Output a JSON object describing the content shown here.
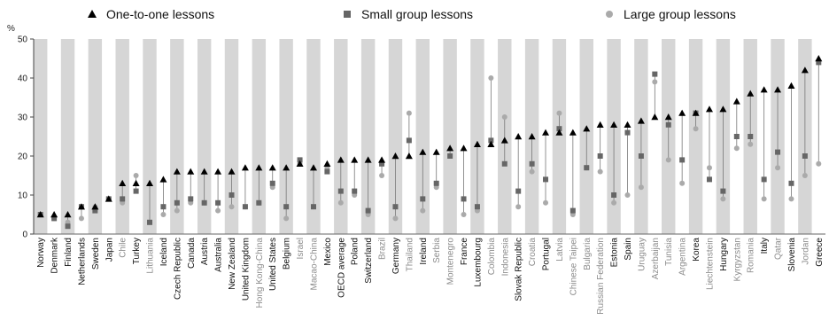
{
  "chart_data": {
    "type": "scatter",
    "ylabel": "%",
    "ylim": [
      0,
      50
    ],
    "yticks": [
      0,
      10,
      20,
      30,
      40,
      50
    ],
    "legend": {
      "placement": "top",
      "items": [
        {
          "label": "One-to-one lessons",
          "marker": "triangle",
          "color": "#000000"
        },
        {
          "label": "Small group lessons",
          "marker": "square",
          "color": "#666666"
        },
        {
          "label": "Large group lessons",
          "marker": "circle",
          "color": "#aaaaaa"
        }
      ]
    },
    "series_keys": [
      "one_to_one",
      "small_group",
      "large_group"
    ],
    "countries": [
      {
        "name": "Norway",
        "one_to_one": 5,
        "small_group": 5,
        "large_group": 5,
        "grey": false
      },
      {
        "name": "Denmark",
        "one_to_one": 5,
        "small_group": 4,
        "large_group": 4,
        "grey": false
      },
      {
        "name": "Finland",
        "one_to_one": 5,
        "small_group": 2,
        "large_group": 3,
        "grey": false
      },
      {
        "name": "Netherlands",
        "one_to_one": 7,
        "small_group": 7,
        "large_group": 4,
        "grey": false
      },
      {
        "name": "Sweden",
        "one_to_one": 7,
        "small_group": 6,
        "large_group": 7,
        "grey": false
      },
      {
        "name": "Japan",
        "one_to_one": 9,
        "small_group": 9,
        "large_group": 9,
        "grey": false
      },
      {
        "name": "Chile",
        "one_to_one": 13,
        "small_group": 9,
        "large_group": 8,
        "grey": true
      },
      {
        "name": "Turkey",
        "one_to_one": 13,
        "small_group": 11,
        "large_group": 15,
        "grey": false
      },
      {
        "name": "Lithuania",
        "one_to_one": 13,
        "small_group": 3,
        "large_group": 3,
        "grey": true
      },
      {
        "name": "Iceland",
        "one_to_one": 14,
        "small_group": 7,
        "large_group": 5,
        "grey": false
      },
      {
        "name": "Czech Republic",
        "one_to_one": 16,
        "small_group": 8,
        "large_group": 6,
        "grey": false
      },
      {
        "name": "Canada",
        "one_to_one": 16,
        "small_group": 9,
        "large_group": 8,
        "grey": false
      },
      {
        "name": "Austria",
        "one_to_one": 16,
        "small_group": 8,
        "large_group": 8,
        "grey": false
      },
      {
        "name": "Australia",
        "one_to_one": 16,
        "small_group": 8,
        "large_group": 6,
        "grey": false
      },
      {
        "name": "New Zealand",
        "one_to_one": 16,
        "small_group": 10,
        "large_group": 7,
        "grey": false
      },
      {
        "name": "United Kingdom",
        "one_to_one": 17,
        "small_group": 7,
        "large_group": 7,
        "grey": false
      },
      {
        "name": "Hong Kong-China",
        "one_to_one": 17,
        "small_group": 8,
        "large_group": 8,
        "grey": true
      },
      {
        "name": "United States",
        "one_to_one": 17,
        "small_group": 13,
        "large_group": 12,
        "grey": false
      },
      {
        "name": "Belgium",
        "one_to_one": 17,
        "small_group": 7,
        "large_group": 4,
        "grey": false
      },
      {
        "name": "Israel",
        "one_to_one": 18,
        "small_group": 19,
        "large_group": 18,
        "grey": true
      },
      {
        "name": "Macao-China",
        "one_to_one": 17,
        "small_group": 7,
        "large_group": 7,
        "grey": true
      },
      {
        "name": "Mexico",
        "one_to_one": 18,
        "small_group": 16,
        "large_group": 17,
        "grey": false
      },
      {
        "name": "OECD average",
        "one_to_one": 19,
        "small_group": 11,
        "large_group": 8,
        "grey": false
      },
      {
        "name": "Poland",
        "one_to_one": 19,
        "small_group": 11,
        "large_group": 10,
        "grey": false
      },
      {
        "name": "Switzerland",
        "one_to_one": 19,
        "small_group": 6,
        "large_group": 5,
        "grey": false
      },
      {
        "name": "Brazil",
        "one_to_one": 19,
        "small_group": 18,
        "large_group": 15,
        "grey": true
      },
      {
        "name": "Germany",
        "one_to_one": 20,
        "small_group": 7,
        "large_group": 4,
        "grey": false
      },
      {
        "name": "Thailand",
        "one_to_one": 20,
        "small_group": 24,
        "large_group": 31,
        "grey": true
      },
      {
        "name": "Ireland",
        "one_to_one": 21,
        "small_group": 9,
        "large_group": 6,
        "grey": false
      },
      {
        "name": "Serbia",
        "one_to_one": 21,
        "small_group": 13,
        "large_group": 12,
        "grey": true
      },
      {
        "name": "Montenegro",
        "one_to_one": 22,
        "small_group": 20,
        "large_group": 20,
        "grey": true
      },
      {
        "name": "France",
        "one_to_one": 22,
        "small_group": 9,
        "large_group": 5,
        "grey": false
      },
      {
        "name": "Luxembourg",
        "one_to_one": 23,
        "small_group": 7,
        "large_group": 6,
        "grey": false
      },
      {
        "name": "Colombia",
        "one_to_one": 23,
        "small_group": 24,
        "large_group": 40,
        "grey": true
      },
      {
        "name": "Indonesia",
        "one_to_one": 24,
        "small_group": 18,
        "large_group": 30,
        "grey": true
      },
      {
        "name": "Slovak Republic",
        "one_to_one": 25,
        "small_group": 11,
        "large_group": 7,
        "grey": false
      },
      {
        "name": "Croatia",
        "one_to_one": 25,
        "small_group": 18,
        "large_group": 16,
        "grey": true
      },
      {
        "name": "Portugal",
        "one_to_one": 26,
        "small_group": 14,
        "large_group": 8,
        "grey": false
      },
      {
        "name": "Latvia",
        "one_to_one": 26,
        "small_group": 27,
        "large_group": 31,
        "grey": true
      },
      {
        "name": "Chinese Taipei",
        "one_to_one": 26,
        "small_group": 6,
        "large_group": 5,
        "grey": true
      },
      {
        "name": "Bulgaria",
        "one_to_one": 27,
        "small_group": 17,
        "large_group": 17,
        "grey": true
      },
      {
        "name": "Russian Federation",
        "one_to_one": 28,
        "small_group": 20,
        "large_group": 16,
        "grey": true
      },
      {
        "name": "Estonia",
        "one_to_one": 28,
        "small_group": 10,
        "large_group": 8,
        "grey": false
      },
      {
        "name": "Spain",
        "one_to_one": 28,
        "small_group": 26,
        "large_group": 10,
        "grey": false
      },
      {
        "name": "Uruguay",
        "one_to_one": 29,
        "small_group": 20,
        "large_group": 12,
        "grey": true
      },
      {
        "name": "Azerbaijan",
        "one_to_one": 30,
        "small_group": 41,
        "large_group": 39,
        "grey": true
      },
      {
        "name": "Tunisia",
        "one_to_one": 30,
        "small_group": 28,
        "large_group": 19,
        "grey": true
      },
      {
        "name": "Argentina",
        "one_to_one": 31,
        "small_group": 19,
        "large_group": 13,
        "grey": true
      },
      {
        "name": "Korea",
        "one_to_one": 31,
        "small_group": 31,
        "large_group": 27,
        "grey": false
      },
      {
        "name": "Liechtenstein",
        "one_to_one": 32,
        "small_group": 14,
        "large_group": 17,
        "grey": true
      },
      {
        "name": "Hungary",
        "one_to_one": 32,
        "small_group": 11,
        "large_group": 9,
        "grey": false
      },
      {
        "name": "Kyrgyzstan",
        "one_to_one": 34,
        "small_group": 25,
        "large_group": 22,
        "grey": true
      },
      {
        "name": "Romania",
        "one_to_one": 36,
        "small_group": 25,
        "large_group": 23,
        "grey": true
      },
      {
        "name": "Italy",
        "one_to_one": 37,
        "small_group": 14,
        "large_group": 9,
        "grey": false
      },
      {
        "name": "Qatar",
        "one_to_one": 37,
        "small_group": 21,
        "large_group": 17,
        "grey": true
      },
      {
        "name": "Slovenia",
        "one_to_one": 38,
        "small_group": 13,
        "large_group": 9,
        "grey": false
      },
      {
        "name": "Jordan",
        "one_to_one": 42,
        "small_group": 20,
        "large_group": 15,
        "grey": true
      },
      {
        "name": "Greece",
        "one_to_one": 45,
        "small_group": 44,
        "large_group": 18,
        "grey": false
      }
    ]
  }
}
